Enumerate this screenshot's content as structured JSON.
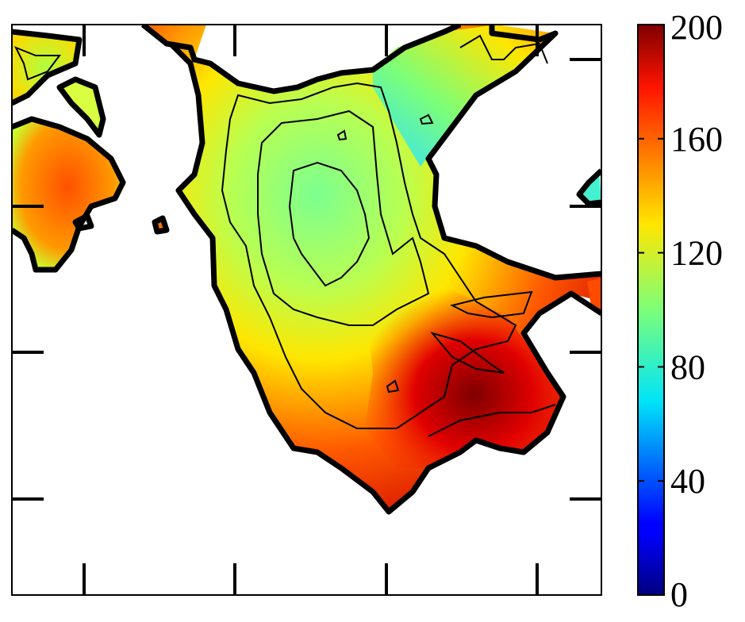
{
  "chart_data": {
    "type": "heatmap",
    "title": "",
    "xlabel": "",
    "ylabel": "",
    "colormap": "jet",
    "colorbar": {
      "range": [
        0,
        200
      ],
      "ticks": [
        0,
        40,
        80,
        120,
        160,
        200
      ],
      "tick_labels": [
        "0",
        "40",
        "80",
        "120",
        "160",
        "200"
      ]
    },
    "contour_levels": [
      100,
      120,
      140,
      160,
      180
    ],
    "regions": [
      {
        "name": "main landmass",
        "approx_value_range": [
          70,
          200
        ],
        "dominant_values": "green-yellow interior, red to dark-red in the south-east"
      },
      {
        "name": "north-east strip",
        "approx_value_range": [
          60,
          160
        ],
        "dominant_values": "cyan to orange"
      },
      {
        "name": "western island",
        "approx_value_range": [
          120,
          180
        ],
        "dominant_values": "orange-red"
      },
      {
        "name": "north-west island",
        "approx_value_range": [
          120,
          150
        ],
        "dominant_values": "yellow-green"
      }
    ],
    "axes": {
      "x_tick_count": 4,
      "y_tick_count": 4,
      "tick_labels_shown": false
    },
    "grid": false
  }
}
